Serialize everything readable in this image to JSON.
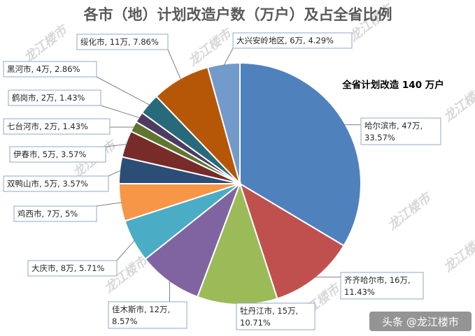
{
  "chart_data": {
    "type": "pie",
    "title": "各市（地）计划改造户数（万户）及占全省比例",
    "subtitle": "全省计划改造 140 万户",
    "slices": [
      {
        "label": "哈尔滨市",
        "value": 47,
        "unit": "万",
        "percent": "33.57%",
        "color": "#4f81bd"
      },
      {
        "label": "齐齐哈尔市",
        "value": 16,
        "unit": "万",
        "percent": "11.43%",
        "color": "#c0504d"
      },
      {
        "label": "牡丹江市",
        "value": 15,
        "unit": "万",
        "percent": "10.71%",
        "color": "#9bbb59"
      },
      {
        "label": "佳木斯市",
        "value": 12,
        "unit": "万",
        "percent": "8.57%",
        "color": "#8064a2"
      },
      {
        "label": "大庆市",
        "value": 8,
        "unit": "万",
        "percent": "5.71%",
        "color": "#4bacc6"
      },
      {
        "label": "鸡西市",
        "value": 7,
        "unit": "万",
        "percent": "5%",
        "color": "#f79646"
      },
      {
        "label": "双鸭山市",
        "value": 5,
        "unit": "万",
        "percent": "3.57%",
        "color": "#2c4d75"
      },
      {
        "label": "伊春市",
        "value": 5,
        "unit": "万",
        "percent": "3.57%",
        "color": "#772c2a"
      },
      {
        "label": "七台河市",
        "value": 2,
        "unit": "万",
        "percent": "1.43%",
        "color": "#5f7530"
      },
      {
        "label": "鹤岗市",
        "value": 2,
        "unit": "万",
        "percent": "1.43%",
        "color": "#4d3b62"
      },
      {
        "label": "黑河市",
        "value": 4,
        "unit": "万",
        "percent": "2.86%",
        "color": "#276a7c"
      },
      {
        "label": "绥化市",
        "value": 11,
        "unit": "万",
        "percent": "7.86%",
        "color": "#b65708"
      },
      {
        "label": "大兴安岭地区",
        "value": 6,
        "unit": "万",
        "percent": "4.29%",
        "color": "#729aca"
      }
    ]
  },
  "watermark": "龙江楼市",
  "credit": "头条 @龙江楼市"
}
